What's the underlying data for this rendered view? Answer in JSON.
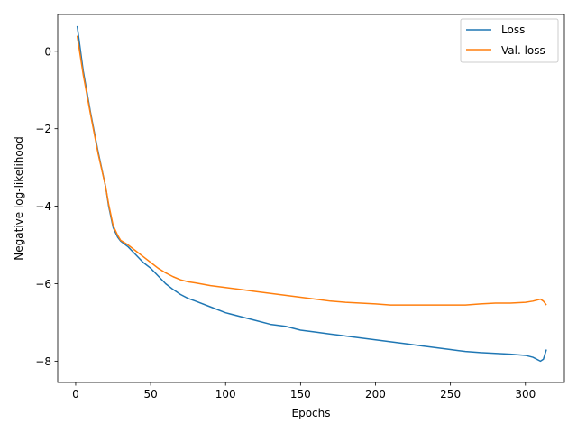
{
  "chart_data": {
    "type": "line",
    "xlabel": "Epochs",
    "ylabel": "Negative log-likelihood",
    "xlim": [
      -12,
      326
    ],
    "ylim": [
      -8.55,
      0.95
    ],
    "xticks": [
      0,
      50,
      100,
      150,
      200,
      250,
      300
    ],
    "yticks": [
      0,
      -2,
      -4,
      -6,
      -8
    ],
    "ytick_labels": [
      "0",
      "−2",
      "−4",
      "−6",
      "−8"
    ],
    "grid": false,
    "legend": {
      "placement": "top-right"
    },
    "series": [
      {
        "name": "Loss",
        "color": "#1f77b4",
        "x": [
          1,
          5,
          10,
          15,
          20,
          22,
          25,
          28,
          30,
          35,
          40,
          45,
          50,
          55,
          60,
          65,
          70,
          75,
          80,
          90,
          100,
          110,
          120,
          130,
          140,
          150,
          160,
          170,
          180,
          190,
          200,
          210,
          220,
          230,
          240,
          250,
          260,
          270,
          280,
          290,
          300,
          305,
          310,
          312,
          314
        ],
        "y": [
          0.65,
          -0.5,
          -1.6,
          -2.6,
          -3.5,
          -4.0,
          -4.55,
          -4.8,
          -4.9,
          -5.05,
          -5.25,
          -5.45,
          -5.6,
          -5.8,
          -6.0,
          -6.15,
          -6.28,
          -6.38,
          -6.45,
          -6.6,
          -6.75,
          -6.85,
          -6.95,
          -7.05,
          -7.1,
          -7.2,
          -7.25,
          -7.3,
          -7.35,
          -7.4,
          -7.45,
          -7.5,
          -7.55,
          -7.6,
          -7.65,
          -7.7,
          -7.75,
          -7.78,
          -7.8,
          -7.82,
          -7.85,
          -7.9,
          -8.0,
          -7.95,
          -7.7
        ]
      },
      {
        "name": "Val. loss",
        "color": "#ff7f0e",
        "x": [
          1,
          5,
          10,
          15,
          20,
          22,
          25,
          28,
          30,
          35,
          40,
          45,
          50,
          55,
          60,
          65,
          70,
          75,
          80,
          90,
          100,
          110,
          120,
          130,
          140,
          150,
          160,
          170,
          180,
          190,
          200,
          210,
          220,
          230,
          240,
          250,
          260,
          270,
          280,
          290,
          300,
          305,
          310,
          312,
          314
        ],
        "y": [
          0.4,
          -0.6,
          -1.65,
          -2.65,
          -3.5,
          -3.95,
          -4.5,
          -4.75,
          -4.88,
          -5.0,
          -5.15,
          -5.3,
          -5.45,
          -5.6,
          -5.72,
          -5.82,
          -5.9,
          -5.95,
          -5.98,
          -6.05,
          -6.1,
          -6.15,
          -6.2,
          -6.25,
          -6.3,
          -6.35,
          -6.4,
          -6.45,
          -6.48,
          -6.5,
          -6.52,
          -6.55,
          -6.55,
          -6.55,
          -6.55,
          -6.55,
          -6.55,
          -6.52,
          -6.5,
          -6.5,
          -6.48,
          -6.45,
          -6.4,
          -6.45,
          -6.55
        ]
      }
    ]
  }
}
